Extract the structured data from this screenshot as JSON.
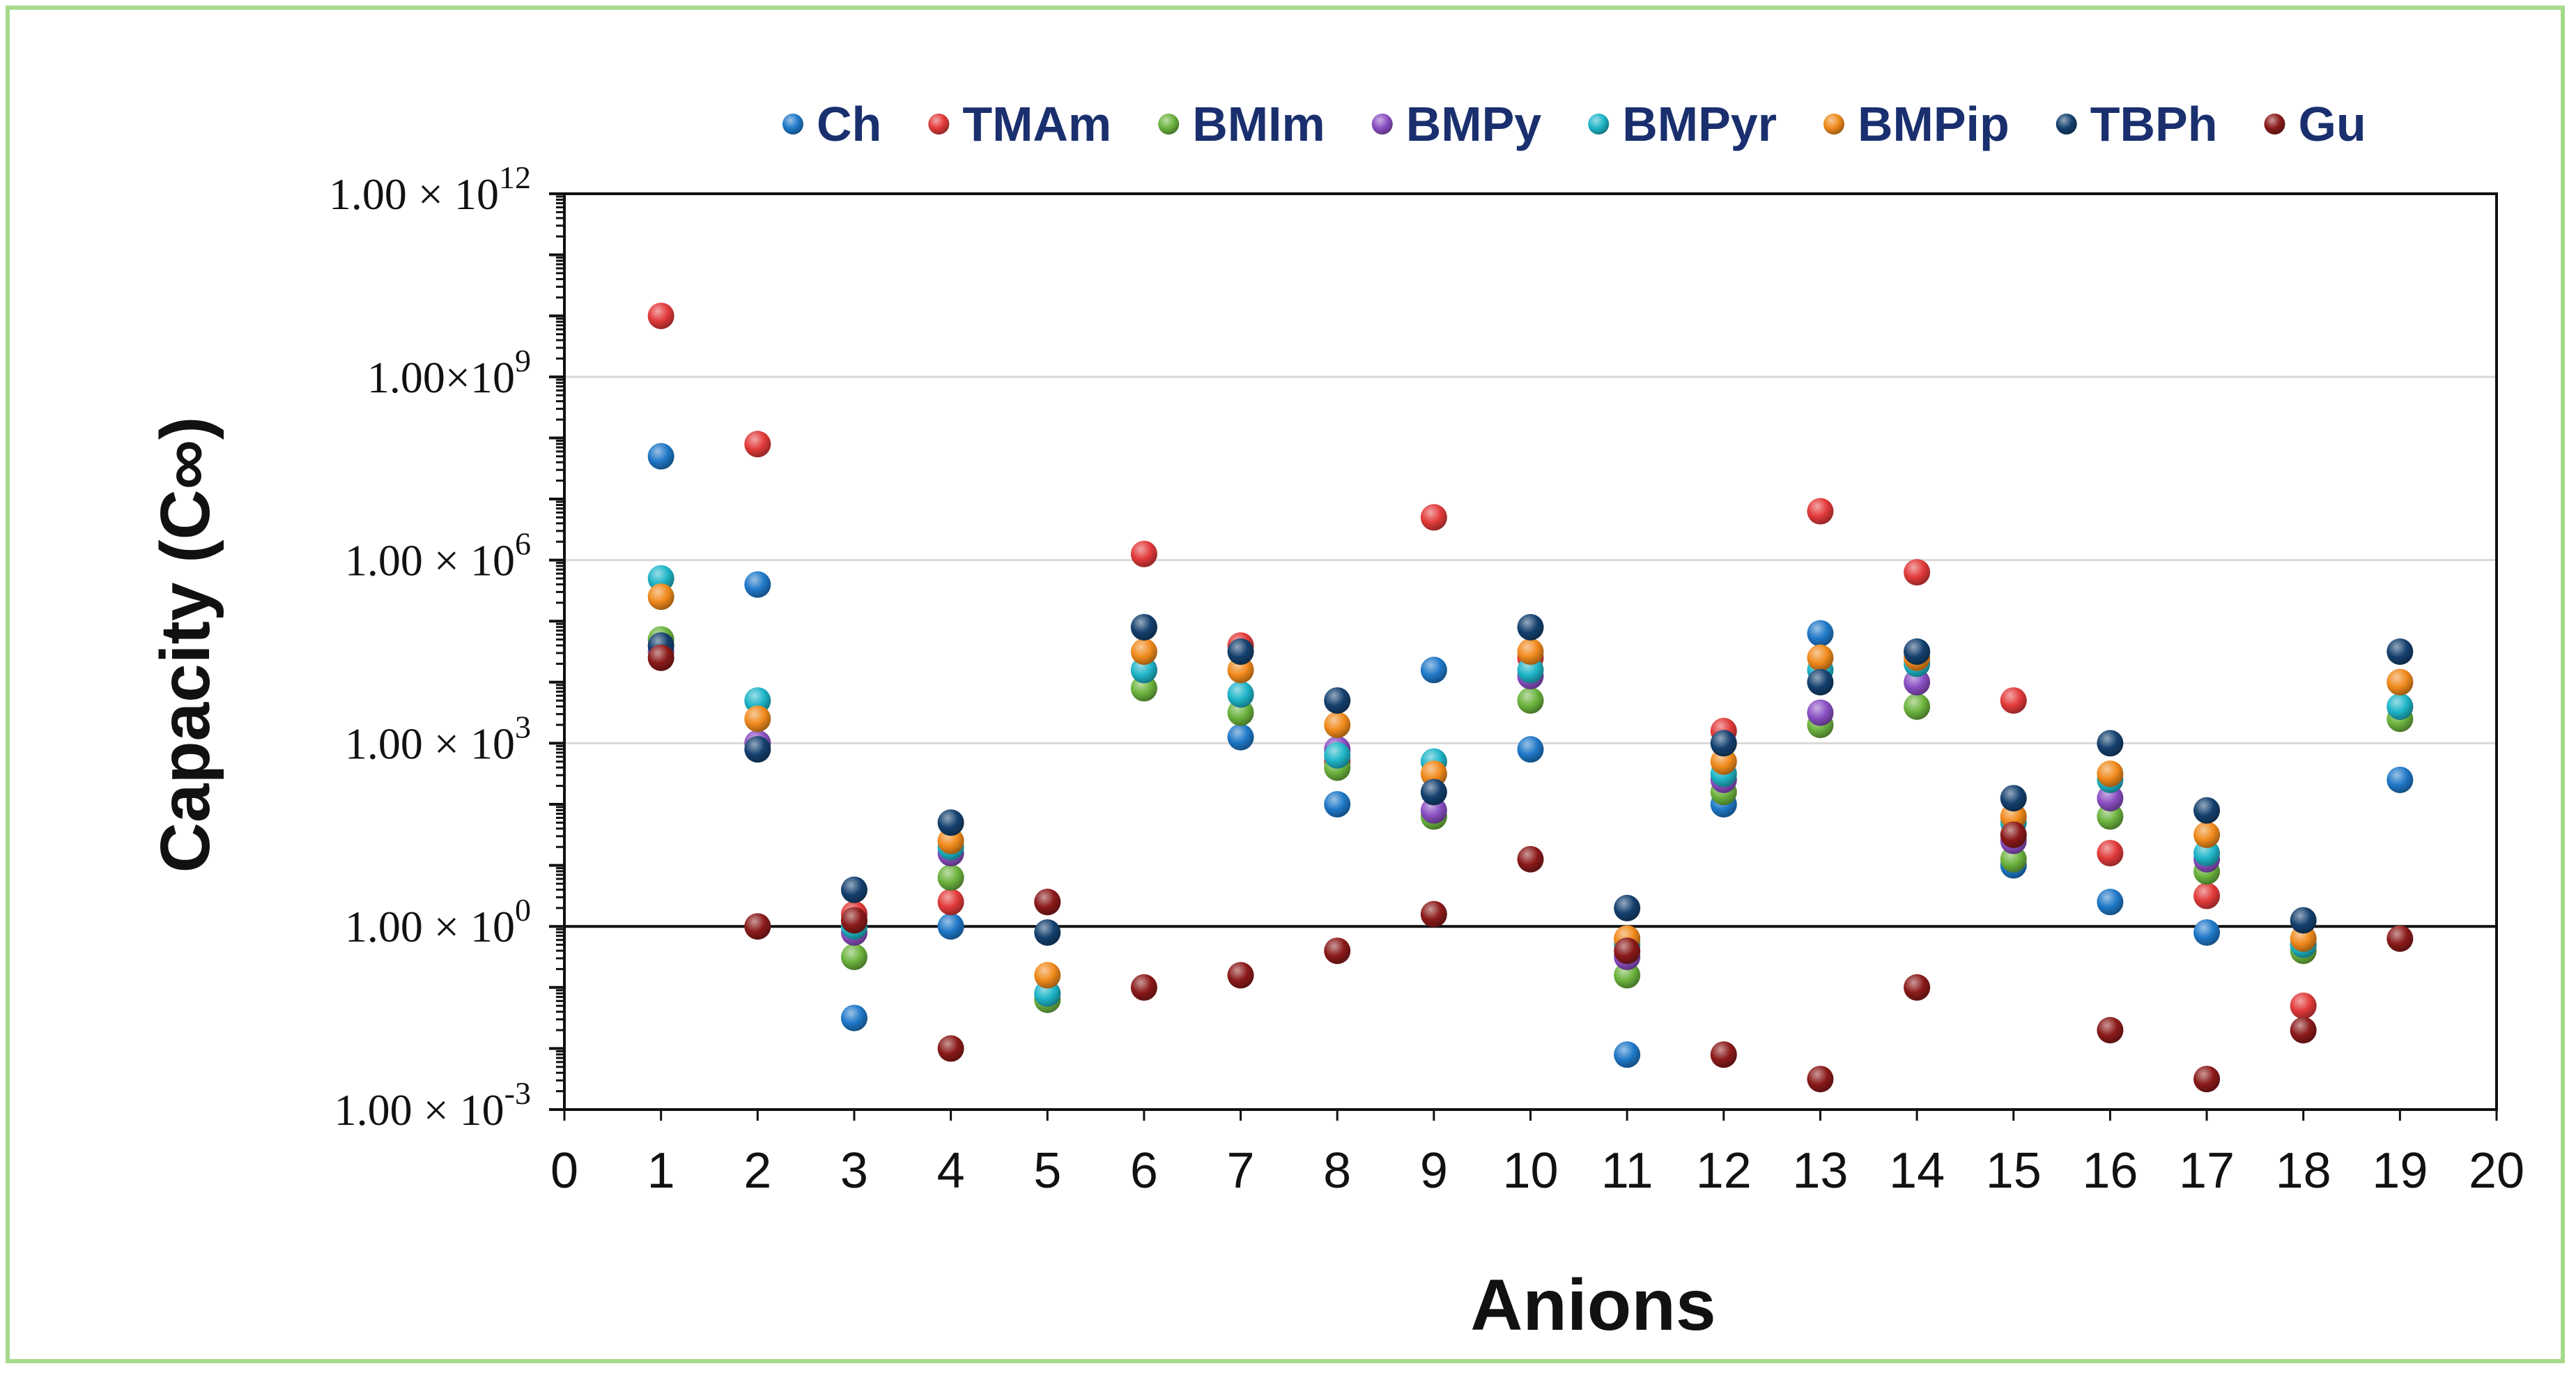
{
  "chart_data": {
    "type": "scatter",
    "xlabel": "Anions",
    "ylabel": "Capacity (C∞)",
    "xlim": [
      0,
      20
    ],
    "ylim": [
      -3,
      12
    ],
    "yscale": "log",
    "x_ticks": [
      "0",
      "1",
      "2",
      "3",
      "4",
      "5",
      "6",
      "7",
      "8",
      "9",
      "10",
      "11",
      "12",
      "13",
      "14",
      "15",
      "16",
      "17",
      "18",
      "19",
      "20"
    ],
    "y_ticks": [
      {
        "value": 12,
        "mantissa": "1.00 × 10",
        "exp": "12"
      },
      {
        "value": 9,
        "mantissa": "1.00×10",
        "exp": "9"
      },
      {
        "value": 6,
        "mantissa": "1.00 × 10",
        "exp": "6"
      },
      {
        "value": 3,
        "mantissa": "1.00 × 10",
        "exp": "3"
      },
      {
        "value": 0,
        "mantissa": "1.00 × 10",
        "exp": "0"
      },
      {
        "value": -3,
        "mantissa": "1.00 × 10",
        "exp": "-3"
      }
    ],
    "grid": true,
    "legend_position": "top",
    "value_note": "values are log10(capacity)",
    "series": [
      {
        "name": "Ch",
        "color": "#1f78c8",
        "x": [
          1,
          2,
          3,
          4,
          5,
          6,
          7,
          8,
          9,
          10,
          11,
          12,
          13,
          14,
          15,
          16,
          17,
          18,
          19
        ],
        "y": [
          7.7,
          5.6,
          -1.5,
          0.0,
          -1.2,
          4.9,
          3.1,
          2.0,
          4.2,
          2.9,
          -2.1,
          2.0,
          4.8,
          4.5,
          1.0,
          0.4,
          -0.1,
          -0.3,
          2.4
        ]
      },
      {
        "name": "TMAm",
        "color": "#e23a3a",
        "x": [
          1,
          2,
          3,
          4,
          5,
          6,
          7,
          8,
          9,
          10,
          11,
          12,
          13,
          14,
          15,
          16,
          17,
          18,
          19
        ],
        "y": [
          10.0,
          7.9,
          0.2,
          0.4,
          0.4,
          6.1,
          4.6,
          2.7,
          6.7,
          4.4,
          -0.2,
          3.2,
          6.8,
          5.8,
          3.7,
          1.2,
          0.5,
          -1.3,
          4.0
        ]
      },
      {
        "name": "BMIm",
        "color": "#6cb33e",
        "x": [
          1,
          2,
          3,
          4,
          5,
          6,
          7,
          8,
          9,
          10,
          11,
          12,
          13,
          14,
          15,
          16,
          17,
          18,
          19
        ],
        "y": [
          4.7,
          3.0,
          -0.5,
          0.8,
          -1.2,
          3.9,
          3.5,
          2.6,
          1.8,
          3.7,
          -0.8,
          2.2,
          3.3,
          3.6,
          1.1,
          1.8,
          0.9,
          -0.4,
          3.4
        ]
      },
      {
        "name": "BMPy",
        "color": "#8a4fc2",
        "x": [
          1,
          2,
          3,
          4,
          5,
          6,
          7,
          8,
          9,
          10,
          11,
          12,
          13,
          14,
          15,
          16,
          17,
          18,
          19
        ],
        "y": [
          4.5,
          3.0,
          -0.1,
          1.2,
          -1.1,
          4.2,
          3.8,
          2.9,
          1.9,
          4.1,
          -0.5,
          2.4,
          3.5,
          4.0,
          1.4,
          2.1,
          1.1,
          -0.3,
          3.6
        ]
      },
      {
        "name": "BMPyr",
        "color": "#1fb5c8",
        "x": [
          1,
          2,
          3,
          4,
          5,
          6,
          7,
          8,
          9,
          10,
          11,
          12,
          13,
          14,
          15,
          16,
          17,
          18,
          19
        ],
        "y": [
          5.7,
          3.7,
          0.0,
          1.3,
          -1.1,
          4.2,
          3.8,
          2.8,
          2.7,
          4.2,
          -0.3,
          2.5,
          4.2,
          4.3,
          1.7,
          2.4,
          1.2,
          -0.3,
          3.6
        ]
      },
      {
        "name": "BMPip",
        "color": "#f08a1c",
        "x": [
          1,
          2,
          3,
          4,
          5,
          6,
          7,
          8,
          9,
          10,
          11,
          12,
          13,
          14,
          15,
          16,
          17,
          18,
          19
        ],
        "y": [
          5.4,
          3.4,
          0.1,
          1.4,
          -0.8,
          4.5,
          4.2,
          3.3,
          2.5,
          4.5,
          -0.2,
          2.7,
          4.4,
          4.4,
          1.8,
          2.5,
          1.5,
          -0.2,
          4.0
        ]
      },
      {
        "name": "TBPh",
        "color": "#14406e",
        "x": [
          1,
          2,
          3,
          4,
          5,
          6,
          7,
          8,
          9,
          10,
          11,
          12,
          13,
          14,
          15,
          16,
          17,
          18,
          19
        ],
        "y": [
          4.6,
          2.9,
          0.6,
          1.7,
          -0.1,
          4.9,
          4.5,
          3.7,
          2.2,
          4.9,
          0.3,
          3.0,
          4.0,
          4.5,
          2.1,
          3.0,
          1.9,
          0.1,
          4.5
        ]
      },
      {
        "name": "Gu",
        "color": "#8b1a1a",
        "x": [
          1,
          2,
          3,
          4,
          5,
          6,
          7,
          8,
          9,
          10,
          11,
          12,
          13,
          14,
          15,
          16,
          17,
          18,
          19
        ],
        "y": [
          4.4,
          0.0,
          0.1,
          -2.0,
          0.4,
          -1.0,
          -0.8,
          -0.4,
          0.2,
          1.1,
          -0.4,
          -2.1,
          -2.5,
          -1.0,
          1.5,
          -1.7,
          -2.5,
          -1.7,
          -0.2
        ]
      }
    ]
  }
}
